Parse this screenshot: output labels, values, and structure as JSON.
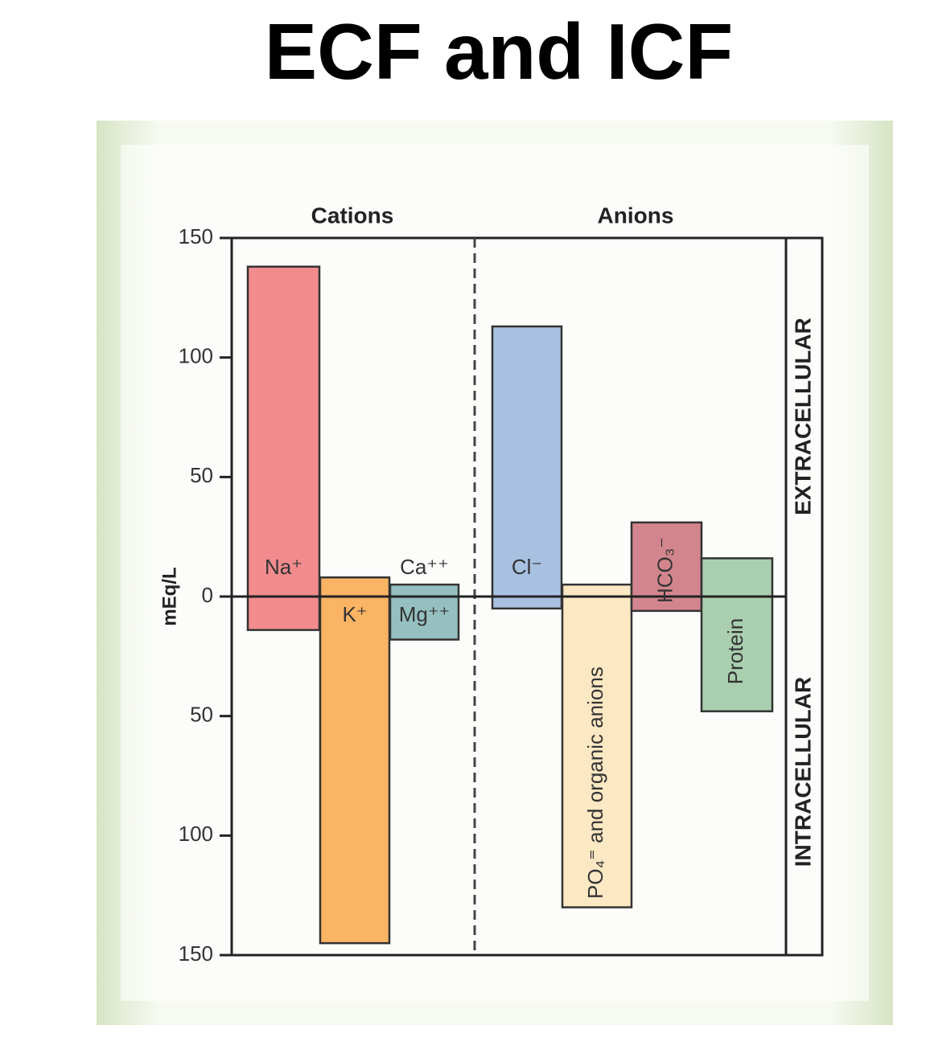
{
  "chart_data": {
    "type": "bar",
    "title": "ECF and ICF",
    "y_label": "mEq/L",
    "group_labels": [
      "Cations",
      "Anions"
    ],
    "categories": [
      "Na⁺",
      "K⁺",
      [
        "Ca⁺⁺",
        "Mg⁺⁺"
      ],
      "Cl⁻",
      "PO₄⁼ and organic anions",
      "HCO₃⁻",
      "Protein"
    ],
    "colors": [
      "#f28b8d",
      "#fab464",
      "#95c0bf",
      "#a9c1e1",
      "#fde8c4",
      "#d3858e",
      "#aacfaf"
    ],
    "series": [
      {
        "name": "EXTRACELLULAR",
        "values": [
          138,
          8,
          5,
          113,
          5,
          31,
          16
        ]
      },
      {
        "name": "INTRACELLULAR",
        "values": [
          -14,
          -145,
          -18,
          -5,
          -130,
          -6,
          -48
        ]
      }
    ],
    "ylim": [
      -150,
      150
    ],
    "yticks": [
      150,
      100,
      50,
      0,
      {
        "value": -50,
        "label": "50"
      },
      {
        "value": -100,
        "label": "100"
      },
      {
        "value": -150,
        "label": "150"
      }
    ],
    "grid": false
  }
}
